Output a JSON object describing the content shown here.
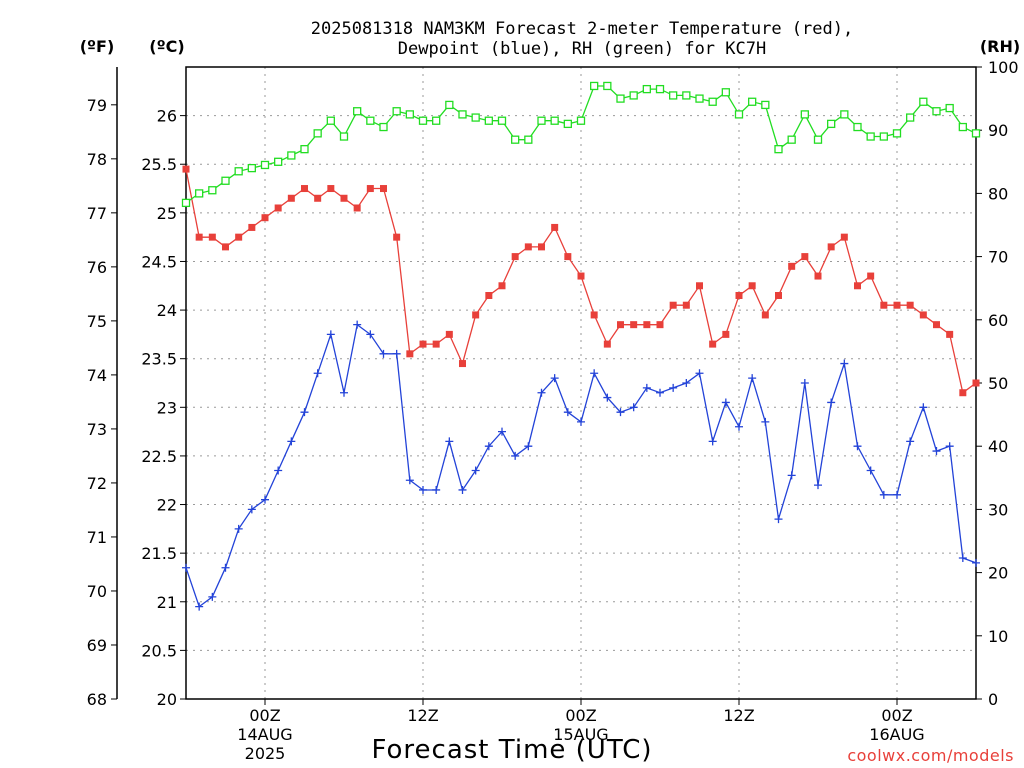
{
  "chart_data": {
    "type": "line",
    "title_line1": "2025081318 NAM3KM Forecast 2-meter Temperature (red),",
    "title_line2": "Dewpoint (blue), RH (green) for KC7H",
    "xlabel": "Forecast Time (UTC)",
    "credit": "coolwx.com/models",
    "units": {
      "fahrenheit": "(ºF)",
      "celsius": "(ºC)",
      "rh": "(RH)"
    },
    "celsius_axis": {
      "range": [
        20,
        26.5
      ],
      "ticks": [
        "20",
        "20.5",
        "21",
        "21.5",
        "22",
        "22.5",
        "23",
        "23.5",
        "24",
        "24.5",
        "25",
        "25.5",
        "26"
      ]
    },
    "fahrenheit_axis": {
      "range": [
        68,
        79.7
      ],
      "ticks": [
        "68",
        "69",
        "70",
        "71",
        "72",
        "73",
        "74",
        "75",
        "76",
        "77",
        "78",
        "79"
      ]
    },
    "rh_axis": {
      "range": [
        0,
        100
      ],
      "ticks": [
        "0",
        "10",
        "20",
        "30",
        "40",
        "50",
        "60",
        "70",
        "80",
        "90",
        "100"
      ]
    },
    "x_axis": {
      "unit": "forecast hour from 2025-08-13 18Z",
      "range": [
        0,
        60
      ],
      "ticks": [
        {
          "hour": 6,
          "label": "00Z",
          "date": "14AUG",
          "year": "2025"
        },
        {
          "hour": 18,
          "label": "12Z",
          "date": "",
          "year": ""
        },
        {
          "hour": 30,
          "label": "00Z",
          "date": "15AUG",
          "year": ""
        },
        {
          "hour": 42,
          "label": "12Z",
          "date": "",
          "year": ""
        },
        {
          "hour": 54,
          "label": "00Z",
          "date": "16AUG",
          "year": ""
        }
      ]
    },
    "grid": true,
    "series": [
      {
        "color": "#e8403a",
        "marker": "filled-square",
        "axis": "celsius",
        "x": [
          0,
          1,
          2,
          3,
          4,
          5,
          6,
          7,
          8,
          9,
          10,
          11,
          12,
          13,
          14,
          15,
          16,
          17,
          18,
          19,
          20,
          21,
          22,
          23,
          24,
          25,
          26,
          27,
          28,
          29,
          30,
          31,
          32,
          33,
          34,
          35,
          36,
          37,
          38,
          39,
          40,
          41,
          42,
          43,
          44,
          45,
          46,
          47,
          48,
          49,
          50,
          51,
          52,
          53,
          54,
          55,
          56,
          57,
          58,
          59,
          60
        ],
        "values": [
          25.45,
          24.75,
          24.75,
          24.65,
          24.75,
          24.85,
          24.95,
          25.05,
          25.15,
          25.25,
          25.15,
          25.25,
          25.15,
          25.05,
          25.25,
          25.25,
          24.75,
          23.55,
          23.65,
          23.65,
          23.75,
          23.45,
          23.95,
          24.15,
          24.25,
          24.55,
          24.65,
          24.65,
          24.85,
          24.55,
          24.35,
          23.95,
          23.65,
          23.85,
          23.85,
          23.85,
          23.85,
          24.05,
          24.05,
          24.25,
          23.65,
          23.75,
          24.15,
          24.25,
          23.95,
          24.15,
          24.45,
          24.55,
          24.35,
          24.65,
          24.75,
          24.25,
          24.35,
          24.05,
          24.05,
          24.05,
          23.95,
          23.85,
          23.75,
          23.15,
          23.25
        ]
      },
      {
        "color": "#2343d8",
        "marker": "plus",
        "axis": "celsius",
        "x": [
          0,
          1,
          2,
          3,
          4,
          5,
          6,
          7,
          8,
          9,
          10,
          11,
          12,
          13,
          14,
          15,
          16,
          17,
          18,
          19,
          20,
          21,
          22,
          23,
          24,
          25,
          26,
          27,
          28,
          29,
          30,
          31,
          32,
          33,
          34,
          35,
          36,
          37,
          38,
          39,
          40,
          41,
          42,
          43,
          44,
          45,
          46,
          47,
          48,
          49,
          50,
          51,
          52,
          53,
          54,
          55,
          56,
          57,
          58,
          59,
          60
        ],
        "values": [
          21.35,
          20.95,
          21.05,
          21.35,
          21.75,
          21.95,
          22.05,
          22.35,
          22.65,
          22.95,
          23.35,
          23.75,
          23.15,
          23.85,
          23.75,
          23.55,
          23.55,
          22.25,
          22.15,
          22.15,
          22.65,
          22.15,
          22.35,
          22.6,
          22.75,
          22.5,
          22.6,
          23.15,
          23.3,
          22.95,
          22.85,
          23.35,
          23.1,
          22.95,
          23.0,
          23.2,
          23.15,
          23.2,
          23.25,
          23.35,
          22.65,
          23.05,
          22.8,
          23.3,
          22.85,
          21.85,
          22.3,
          23.25,
          22.2,
          23.05,
          23.45,
          22.6,
          22.35,
          22.1,
          22.1,
          22.65,
          23.0,
          22.55,
          22.6,
          21.45,
          21.4
        ]
      },
      {
        "color": "#22dd22",
        "marker": "open-square",
        "axis": "rh",
        "x": [
          0,
          1,
          2,
          3,
          4,
          5,
          6,
          7,
          8,
          9,
          10,
          11,
          12,
          13,
          14,
          15,
          16,
          17,
          18,
          19,
          20,
          21,
          22,
          23,
          24,
          25,
          26,
          27,
          28,
          29,
          30,
          31,
          32,
          33,
          34,
          35,
          36,
          37,
          38,
          39,
          40,
          41,
          42,
          43,
          44,
          45,
          46,
          47,
          48,
          49,
          50,
          51,
          52,
          53,
          54,
          55,
          56,
          57,
          58,
          59,
          60
        ],
        "values": [
          78.5,
          80,
          80.5,
          82,
          83.5,
          84,
          84.5,
          85,
          86,
          87,
          89.5,
          91.5,
          89,
          93,
          91.5,
          90.5,
          93,
          92.5,
          91.5,
          91.5,
          94,
          92.5,
          92,
          91.5,
          91.5,
          88.5,
          88.5,
          91.5,
          91.5,
          91,
          91.5,
          97,
          97,
          95,
          95.5,
          96.5,
          96.5,
          95.5,
          95.5,
          95,
          94.5,
          96,
          92.5,
          94.5,
          94,
          87,
          88.5,
          92.5,
          88.5,
          91,
          92.5,
          90.5,
          89,
          89,
          89.5,
          92,
          94.5,
          93,
          93.5,
          90.5,
          89.5
        ]
      }
    ]
  }
}
